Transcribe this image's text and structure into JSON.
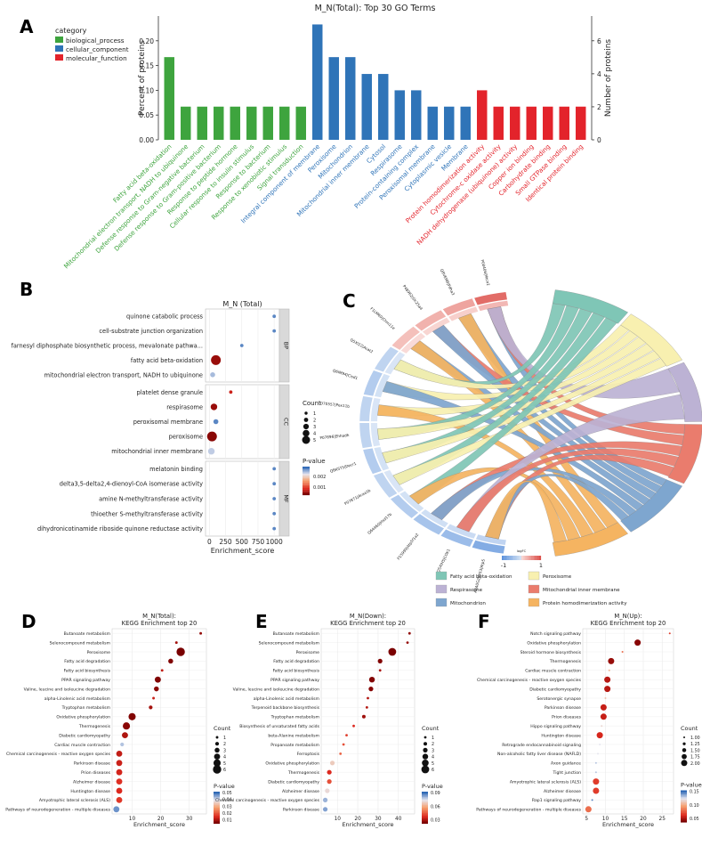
{
  "colors": {
    "bp": "#3ea43e",
    "cc": "#2f74b8",
    "mf": "#e3232b",
    "grid": "#ebebeb",
    "facet": "#d9d9d9"
  },
  "panels": {
    "A": "A",
    "B": "B",
    "C": "C",
    "D": "D",
    "E": "E",
    "F": "F"
  },
  "chart_data": [
    {
      "id": "A",
      "type": "bar",
      "title": "M_N(Total): Top 30 GO Terms",
      "ylabel": "Percent of proteins",
      "y2label": "Number of proteins",
      "ylim": [
        0,
        0.25
      ],
      "y2lim": [
        0,
        7.5
      ],
      "yticks": [
        "0.00",
        "0.05",
        "0.10",
        "0.15",
        "0.20"
      ],
      "y2ticks": [
        "0",
        "2",
        "4",
        "6"
      ],
      "legend_title": "category",
      "legend": [
        {
          "name": "biological_process",
          "key": "bp"
        },
        {
          "name": "cellular_component",
          "key": "cc"
        },
        {
          "name": "molecular_function",
          "key": "mf"
        }
      ],
      "bars": [
        {
          "label": "Fatty acid beta-oxidation",
          "value": 0.167,
          "cat": "bp"
        },
        {
          "label": "Mitochondrial electron transport, NADH to ubiquinone",
          "value": 0.067,
          "cat": "bp"
        },
        {
          "label": "Defense response to Gram-negative bacterium",
          "value": 0.067,
          "cat": "bp"
        },
        {
          "label": "Defense response to Gram-positive bacterium",
          "value": 0.067,
          "cat": "bp"
        },
        {
          "label": "Response to peptide hormone",
          "value": 0.067,
          "cat": "bp"
        },
        {
          "label": "Cellular response to insulin stimulus",
          "value": 0.067,
          "cat": "bp"
        },
        {
          "label": "Response to bacterium",
          "value": 0.067,
          "cat": "bp"
        },
        {
          "label": "Response to xenobiotic stimulus",
          "value": 0.067,
          "cat": "bp"
        },
        {
          "label": "Signal transduction",
          "value": 0.067,
          "cat": "bp"
        },
        {
          "label": "Integral component of membrane",
          "value": 0.233,
          "cat": "cc"
        },
        {
          "label": "Peroxisome",
          "value": 0.167,
          "cat": "cc"
        },
        {
          "label": "Mitochondrion",
          "value": 0.167,
          "cat": "cc"
        },
        {
          "label": "Mitochondrial inner membrane",
          "value": 0.133,
          "cat": "cc"
        },
        {
          "label": "Cytosol",
          "value": 0.133,
          "cat": "cc"
        },
        {
          "label": "Respirasome",
          "value": 0.1,
          "cat": "cc"
        },
        {
          "label": "Protein-containing complex",
          "value": 0.1,
          "cat": "cc"
        },
        {
          "label": "Peroxisomal membrane",
          "value": 0.067,
          "cat": "cc"
        },
        {
          "label": "Cytoplasmic vesicle",
          "value": 0.067,
          "cat": "cc"
        },
        {
          "label": "Membrane",
          "value": 0.067,
          "cat": "cc"
        },
        {
          "label": "Protein homodimerization activity",
          "value": 0.1,
          "cat": "mf"
        },
        {
          "label": "Cytochrome-c oxidase activity",
          "value": 0.067,
          "cat": "mf"
        },
        {
          "label": "NADH dehydrogenase (ubiquinone) activity",
          "value": 0.067,
          "cat": "mf"
        },
        {
          "label": "Copper ion binding",
          "value": 0.067,
          "cat": "mf"
        },
        {
          "label": "Carbohydrate binding",
          "value": 0.067,
          "cat": "mf"
        },
        {
          "label": "Small GTPase binding",
          "value": 0.067,
          "cat": "mf"
        },
        {
          "label": "Identical protein binding",
          "value": 0.067,
          "cat": "mf"
        }
      ]
    },
    {
      "id": "B",
      "type": "scatter",
      "title": "M_N (Total)",
      "xlabel": "Enrichment_score",
      "xlim": [
        -60,
        1080
      ],
      "xticks": [
        0,
        250,
        500,
        750,
        1000
      ],
      "size_legend_title": "Count",
      "size_legend": [
        1,
        2,
        3,
        4,
        5
      ],
      "color_legend_title": "P-value",
      "color_legend": [
        "0.002",
        "0.001"
      ],
      "facets": [
        {
          "name": "BP",
          "terms": [
            {
              "term": "quinone catabolic process",
              "x": 1000,
              "count": 1,
              "p": 0.0028
            },
            {
              "term": "cell-substrate junction organization",
              "x": 1000,
              "count": 1,
              "p": 0.0028
            },
            {
              "term": "farnesyl diphosphate biosynthetic process, mevalonate pathwa...",
              "x": 500,
              "count": 1,
              "p": 0.0028
            },
            {
              "term": "fatty acid beta-oxidation",
              "x": 100,
              "count": 5,
              "p": 0.0002
            },
            {
              "term": "mitochondrial electron transport, NADH to ubiquinone",
              "x": 50,
              "count": 2,
              "p": 0.0025
            }
          ]
        },
        {
          "name": "CC",
          "terms": [
            {
              "term": "platelet dense granule",
              "x": 330,
              "count": 1,
              "p": 0.0005
            },
            {
              "term": "respirasome",
              "x": 70,
              "count": 3,
              "p": 0.0002
            },
            {
              "term": "peroxisomal membrane",
              "x": 100,
              "count": 2,
              "p": 0.0028
            },
            {
              "term": "peroxisome",
              "x": 40,
              "count": 5,
              "p": 0.0001
            },
            {
              "term": "mitochondrial inner membrane",
              "x": 30,
              "count": 3,
              "p": 0.0024
            }
          ]
        },
        {
          "name": "MF",
          "terms": [
            {
              "term": "melatonin binding",
              "x": 1000,
              "count": 1,
              "p": 0.0028
            },
            {
              "term": "delta3,5-delta2,4-dienoyl-CoA isomerase activity",
              "x": 1000,
              "count": 1,
              "p": 0.0028
            },
            {
              "term": "amine N-methyltransferase activity",
              "x": 1000,
              "count": 1,
              "p": 0.0028
            },
            {
              "term": "thioether S-methyltransferase activity",
              "x": 1000,
              "count": 1,
              "p": 0.0028
            },
            {
              "term": "dihydronicotinamide riboside quinone reductase activity",
              "x": 1000,
              "count": 1,
              "p": 0.0028
            }
          ]
        }
      ]
    },
    {
      "id": "C",
      "type": "chord",
      "genes": [
        "P00406|Mtco2",
        "Q8VEM8|Pdha3",
        "P48962|Slc25a4",
        "F1LM69|Chm11e",
        "Q5XI22|Acat2",
        "Q6IM94|Cisd1",
        "O70557|Pex11b",
        "P07896|Ehhadh",
        "Q8K5T5|Decr1",
        "P07871|Acaa1b",
        "Q64460|Hsd17b",
        "P15999|Atp5f1a2",
        "Q5XIH5|COX1",
        "A0A0G2JW53|Atp5"
      ],
      "gene_fc": [
        0.8,
        0.4,
        0.3,
        0.2,
        -0.2,
        -0.3,
        -0.2,
        -0.2,
        -0.3,
        -0.2,
        -0.3,
        -0.4,
        -0.5,
        -0.7
      ],
      "terms": [
        {
          "name": "Fatty acid beta-oxidation",
          "color": "#7fc6b6"
        },
        {
          "name": "Peroxisome",
          "color": "#f8f0b0"
        },
        {
          "name": "Respirasome",
          "color": "#bcb2d4"
        },
        {
          "name": "Mitochondrial inner membrane",
          "color": "#ea7c6d"
        },
        {
          "name": "Mitochondrion",
          "color": "#7ea6cf"
        },
        {
          "name": "Protein homodimerization activity",
          "color": "#f5b461"
        }
      ],
      "scale_title": "logFC",
      "scale_min": "-1",
      "scale_max": "1"
    },
    {
      "id": "D",
      "type": "scatter",
      "title": "M_N(Total):",
      "subtitle": "KEGG Enrichment top 20",
      "xlabel": "Enrichment_score",
      "xlim": [
        3,
        36
      ],
      "xticks": [
        10,
        20,
        30
      ],
      "size_legend_title": "Count",
      "size_legend": [
        1,
        2,
        3,
        4,
        5,
        6
      ],
      "color_legend_title": "P-value",
      "color_legend": [
        "0.05",
        "0.04",
        "0.03",
        "0.02",
        "0.01"
      ],
      "pmax": 0.055,
      "terms": [
        {
          "term": "Butanoate metabolism",
          "x": 34,
          "count": 1,
          "p": 0.003
        },
        {
          "term": "Selenocompound metabolism",
          "x": 25.5,
          "count": 1,
          "p": 0.005
        },
        {
          "term": "Peroxisome",
          "x": 27,
          "count": 6,
          "p": 0.0001
        },
        {
          "term": "Fatty acid degradation",
          "x": 23.5,
          "count": 3,
          "p": 0.001
        },
        {
          "term": "Fatty acid biosynthesis",
          "x": 20.5,
          "count": 1,
          "p": 0.008
        },
        {
          "term": "PPAR signaling pathway",
          "x": 19,
          "count": 4,
          "p": 0.001
        },
        {
          "term": "Valine, leucine and isoleucine degradation",
          "x": 18.5,
          "count": 3,
          "p": 0.002
        },
        {
          "term": "alpha-Linolenic acid metabolism",
          "x": 17.5,
          "count": 1,
          "p": 0.009
        },
        {
          "term": "Tryptophan metabolism",
          "x": 16.5,
          "count": 2,
          "p": 0.005
        },
        {
          "term": "Oxidative phosphorylation",
          "x": 10,
          "count": 5,
          "p": 0.001
        },
        {
          "term": "Thermogenesis",
          "x": 8,
          "count": 5,
          "p": 0.002
        },
        {
          "term": "Diabetic cardiomyopathy",
          "x": 7.5,
          "count": 4,
          "p": 0.006
        },
        {
          "term": "Cardiac muscle contraction",
          "x": 6.5,
          "count": 2,
          "p": 0.045
        },
        {
          "term": "Chemical carcinogenesis - reactive oxygen species",
          "x": 5.5,
          "count": 4,
          "p": 0.008
        },
        {
          "term": "Parkinson disease",
          "x": 5.5,
          "count": 4,
          "p": 0.009
        },
        {
          "term": "Prion diseases",
          "x": 5.5,
          "count": 4,
          "p": 0.01
        },
        {
          "term": "Alzheimer disease",
          "x": 5.5,
          "count": 4,
          "p": 0.012
        },
        {
          "term": "Huntington disease",
          "x": 5.5,
          "count": 4,
          "p": 0.011
        },
        {
          "term": "Amyotrophic lateral sclerosis (ALS)",
          "x": 5.5,
          "count": 4,
          "p": 0.013
        },
        {
          "term": "Pathways of neurodegeneration - multiple diseases",
          "x": 4.5,
          "count": 4,
          "p": 0.05
        }
      ]
    },
    {
      "id": "E",
      "type": "scatter",
      "title": "M_N(Down):",
      "subtitle": "KEGG Enrichment top 20",
      "xlabel": "Enrichment_score",
      "xlim": [
        2,
        48
      ],
      "xticks": [
        10,
        20,
        30,
        40
      ],
      "size_legend_title": "Count",
      "size_legend": [
        1,
        2,
        3,
        4,
        5,
        6
      ],
      "color_legend_title": "P-value",
      "color_legend": [
        "0.09",
        "0.06",
        "0.03"
      ],
      "pmax": 0.1,
      "terms": [
        {
          "term": "Butanoate metabolism",
          "x": 45.5,
          "count": 1,
          "p": 0.005
        },
        {
          "term": "Selenocompound metabolism",
          "x": 44.5,
          "count": 1,
          "p": 0.006
        },
        {
          "term": "Peroxisome",
          "x": 37,
          "count": 6,
          "p": 0.0005
        },
        {
          "term": "Fatty acid degradation",
          "x": 31,
          "count": 3,
          "p": 0.002
        },
        {
          "term": "Fatty acid biosynthesis",
          "x": 31,
          "count": 1,
          "p": 0.01
        },
        {
          "term": "PPAR signaling pathway",
          "x": 27,
          "count": 4,
          "p": 0.002
        },
        {
          "term": "Valine, leucine and isoleucine degradation",
          "x": 26.5,
          "count": 3,
          "p": 0.003
        },
        {
          "term": "alpha-Linolenic acid metabolism",
          "x": 25,
          "count": 1,
          "p": 0.012
        },
        {
          "term": "Terpenoid backbone biosynthesis",
          "x": 24.5,
          "count": 1,
          "p": 0.012
        },
        {
          "term": "Tryptophan metabolism",
          "x": 23,
          "count": 2,
          "p": 0.008
        },
        {
          "term": "Biosynthesis of unsaturated fatty acids",
          "x": 18,
          "count": 1,
          "p": 0.02
        },
        {
          "term": "beta-Alanine metabolism",
          "x": 14.5,
          "count": 1,
          "p": 0.025
        },
        {
          "term": "Propanoate metabolism",
          "x": 13,
          "count": 1,
          "p": 0.03
        },
        {
          "term": "Ferroptosis",
          "x": 11.5,
          "count": 1,
          "p": 0.035
        },
        {
          "term": "Oxidative phosphorylation",
          "x": 7.5,
          "count": 3,
          "p": 0.065
        },
        {
          "term": "Thermogenesis",
          "x": 6,
          "count": 3,
          "p": 0.02
        },
        {
          "term": "Diabetic cardiomyopathy",
          "x": 6,
          "count": 3,
          "p": 0.03
        },
        {
          "term": "Alzheimer disease",
          "x": 5,
          "count": 3,
          "p": 0.07
        },
        {
          "term": "Chemical carcinogenesis - reactive oxygen species",
          "x": 4,
          "count": 3,
          "p": 0.085
        },
        {
          "term": "Parkinson disease",
          "x": 4,
          "count": 3,
          "p": 0.088
        }
      ]
    },
    {
      "id": "F",
      "type": "scatter",
      "title": "M_N(Up):",
      "subtitle": "KEGG Enrichment top 20",
      "xlabel": "Enrichment_score",
      "xlim": [
        4,
        28
      ],
      "xticks": [
        5,
        10,
        15,
        20,
        25
      ],
      "size_legend_title": "Count",
      "size_legend": [
        "1.00",
        "1.25",
        "1.50",
        "1.75",
        "2.00"
      ],
      "color_legend_title": "P-value",
      "color_legend": [
        "0.15",
        "0.10",
        "0.05"
      ],
      "pmax": 0.16,
      "terms": [
        {
          "term": "Notch signaling pathway",
          "x": 27,
          "count": 1,
          "p": 0.04
        },
        {
          "term": "Oxidative phosphorylation",
          "x": 18.5,
          "count": 2,
          "p": 0.005
        },
        {
          "term": "Steroid hormone biosynthesis",
          "x": 14.5,
          "count": 1,
          "p": 0.06
        },
        {
          "term": "Thermogenesis",
          "x": 11.5,
          "count": 2,
          "p": 0.01
        },
        {
          "term": "Cardiac muscle contraction",
          "x": 11,
          "count": 1,
          "p": 0.09
        },
        {
          "term": "Chemical carcinogenesis - reactive oxygen species",
          "x": 10.5,
          "count": 2,
          "p": 0.02
        },
        {
          "term": "Diabetic cardiomyopathy",
          "x": 10.5,
          "count": 2,
          "p": 0.02
        },
        {
          "term": "Serotonergic synapse",
          "x": 10,
          "count": 1,
          "p": 0.1
        },
        {
          "term": "Parkinson disease",
          "x": 9.5,
          "count": 2,
          "p": 0.025
        },
        {
          "term": "Prion diseases",
          "x": 9.5,
          "count": 2,
          "p": 0.025
        },
        {
          "term": "Hippo signaling pathway",
          "x": 9,
          "count": 1,
          "p": 0.11
        },
        {
          "term": "Huntington disease",
          "x": 8.5,
          "count": 2,
          "p": 0.03
        },
        {
          "term": "Retrograde endocannabinoid signaling",
          "x": 8.5,
          "count": 1,
          "p": 0.12
        },
        {
          "term": "Non-alcoholic fatty liver disease (NAFLD)",
          "x": 8,
          "count": 1,
          "p": 0.12
        },
        {
          "term": "Axon guidance",
          "x": 7.5,
          "count": 1,
          "p": 0.13
        },
        {
          "term": "Tight junction",
          "x": 7.5,
          "count": 1,
          "p": 0.13
        },
        {
          "term": "Amyotrophic lateral sclerosis (ALS)",
          "x": 7.5,
          "count": 2,
          "p": 0.04
        },
        {
          "term": "Alzheimer disease",
          "x": 7.5,
          "count": 2,
          "p": 0.04
        },
        {
          "term": "Rap1 signaling pathway",
          "x": 6.5,
          "count": 1,
          "p": 0.15
        },
        {
          "term": "Pathways of neurodegeneration - multiple diseases",
          "x": 5.5,
          "count": 2,
          "p": 0.06
        }
      ]
    }
  ]
}
